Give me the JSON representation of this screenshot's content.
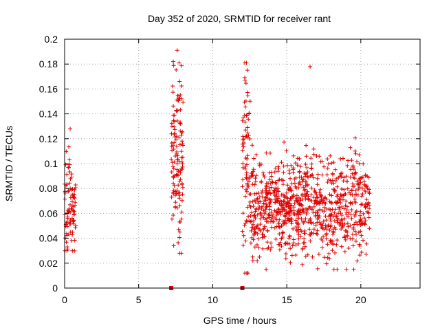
{
  "chart_data": {
    "type": "scatter",
    "title": "Day 352 of 2020, SRMTID for receiver rant",
    "xlabel": "GPS time / hours",
    "ylabel": "SRMTID / TECUs",
    "xlim": [
      0,
      24
    ],
    "ylim": [
      0,
      0.2
    ],
    "x_ticks": [
      0,
      5,
      10,
      15,
      20
    ],
    "x_tick_labels": [
      "0",
      "5",
      "10",
      "15",
      "20"
    ],
    "y_ticks": [
      0,
      0.02,
      0.04,
      0.06,
      0.08,
      0.1,
      0.12,
      0.14,
      0.16,
      0.18,
      0.2
    ],
    "y_tick_labels": [
      "0",
      "0.02",
      "0.04",
      "0.06",
      "0.08",
      "0.1",
      "0.12",
      "0.14",
      "0.16",
      "0.18",
      "0.2"
    ],
    "grid": true,
    "marker": "+",
    "marker_color": "#e00000",
    "zero_markers": [
      7.2,
      12.0
    ],
    "clusters": [
      {
        "x_start": 0.0,
        "x_end": 0.75,
        "y_min": 0.03,
        "y_max": 0.128,
        "mean": 0.068,
        "spread": 0.022,
        "count": 90
      },
      {
        "x_start": 7.2,
        "x_end": 8.0,
        "y_min": 0.028,
        "y_max": 0.191,
        "mean": 0.105,
        "spread": 0.035,
        "count": 130
      },
      {
        "x_start": 12.0,
        "x_end": 12.55,
        "y_min": 0.012,
        "y_max": 0.181,
        "mean": 0.1,
        "spread": 0.04,
        "count": 80
      },
      {
        "x_start": 12.55,
        "x_end": 20.6,
        "y_min": 0.015,
        "y_max": 0.178,
        "mean": 0.065,
        "spread": 0.02,
        "count": 900
      }
    ]
  }
}
